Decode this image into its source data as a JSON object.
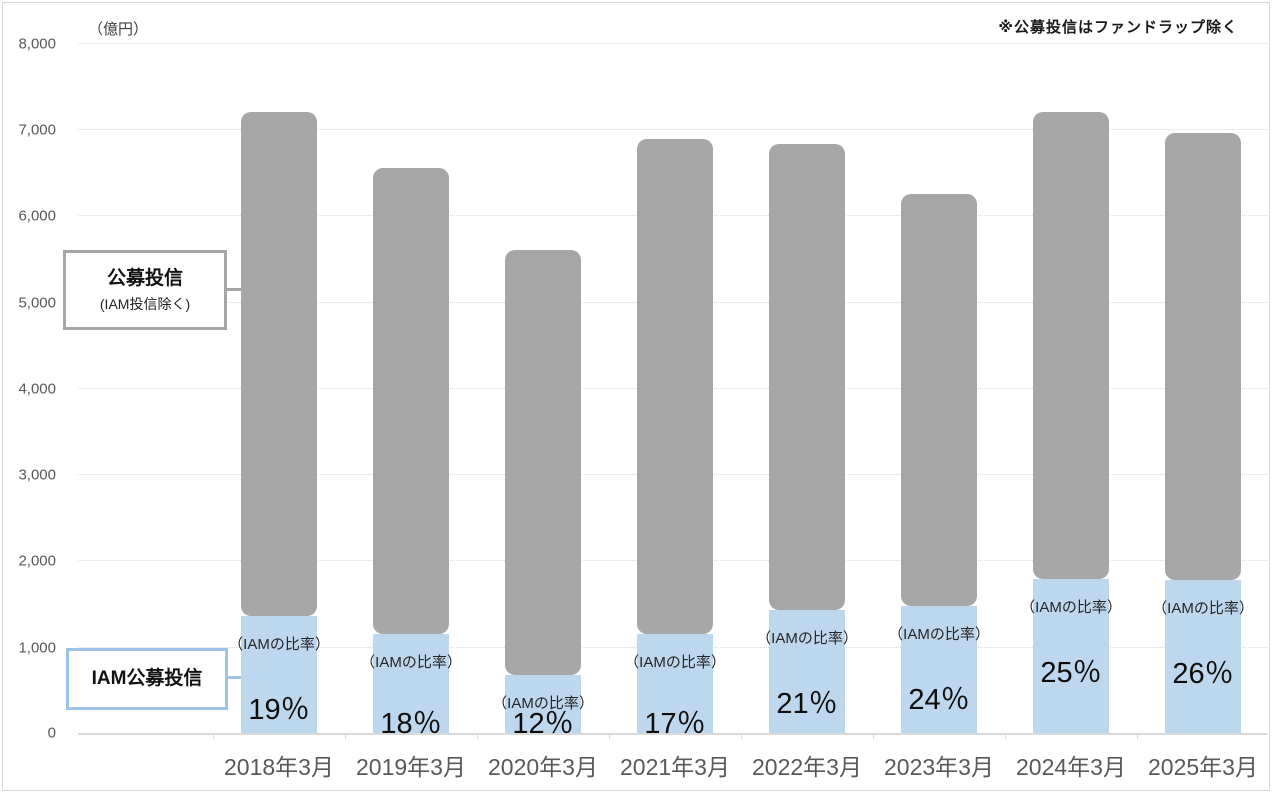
{
  "meta": {
    "unit_label": "（億円）",
    "note": "※公募投信はファンドラップ除く"
  },
  "legend": {
    "top_box": {
      "title": "公募投信",
      "subtitle": "(IAM投信除く)"
    },
    "bottom_box": {
      "title": "IAM公募投信"
    }
  },
  "chart_data": {
    "type": "bar",
    "stacked": true,
    "title": "",
    "xlabel": "",
    "ylabel": "（億円）",
    "ylim": [
      0,
      8000
    ],
    "grid": "horizontal-dotted",
    "categories": [
      "2018年3月",
      "2019年3月",
      "2020年3月",
      "2021年3月",
      "2022年3月",
      "2023年3月",
      "2024年3月",
      "2025年3月"
    ],
    "series": [
      {
        "name": "IAM公募投信",
        "color": "#bdd7ee",
        "values": [
          1350,
          1150,
          670,
          1150,
          1420,
          1470,
          1780,
          1770
        ]
      },
      {
        "name": "公募投信(IAM投信除く)",
        "color": "#a6a6a6",
        "values": [
          5850,
          5400,
          4930,
          5730,
          5400,
          4780,
          5420,
          5180
        ]
      }
    ],
    "totals": [
      7200,
      6550,
      5600,
      6880,
      6820,
      6250,
      7200,
      6950
    ],
    "ratio_label": "（IAMの比率）",
    "ratios": [
      "19％",
      "18％",
      "12％",
      "17％",
      "21％",
      "24％",
      "25％",
      "26％"
    ],
    "y_ticks": [
      {
        "label": "0",
        "value": 0
      },
      {
        "label": "1,000",
        "value": 1000
      },
      {
        "label": "2,000",
        "value": 2000
      },
      {
        "label": "3,000",
        "value": 3000
      },
      {
        "label": "4,000",
        "value": 4000
      },
      {
        "label": "5,000",
        "value": 5000
      },
      {
        "label": "6,000",
        "value": 6000
      },
      {
        "label": "7,000",
        "value": 7000
      },
      {
        "label": "8,000",
        "value": 8000
      }
    ]
  }
}
